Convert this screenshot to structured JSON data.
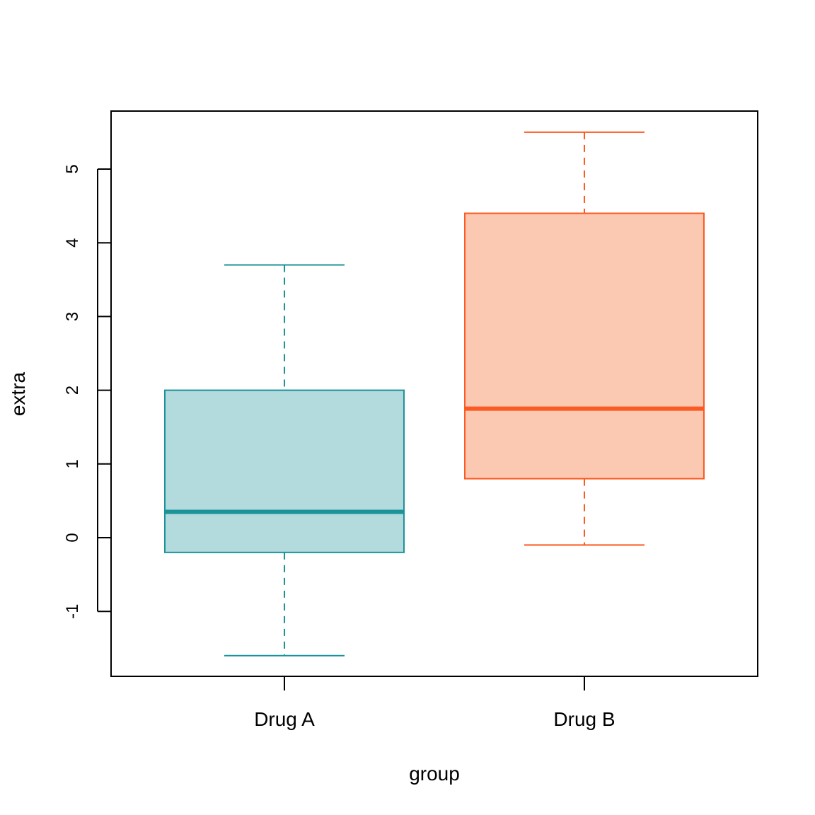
{
  "chart_data": {
    "type": "boxplot",
    "title": "",
    "xlabel": "group",
    "ylabel": "extra",
    "ylim": [
      -1.9,
      5.8
    ],
    "yticks": [
      -1,
      0,
      1,
      2,
      3,
      4,
      5
    ],
    "grid": false,
    "categories": [
      "Drug A",
      "Drug B"
    ],
    "boxes": [
      {
        "category": "Drug A",
        "whisker_low": -1.6,
        "q1": -0.2,
        "median": 0.35,
        "q3": 2.0,
        "whisker_high": 3.7,
        "line_color": "#1a9399",
        "fill_color": "#b3dadd"
      },
      {
        "category": "Drug B",
        "whisker_low": -0.1,
        "q1": 0.8,
        "median": 1.75,
        "q3": 4.4,
        "whisker_high": 5.5,
        "line_color": "#fb5a22",
        "fill_color": "#fbc8b2"
      }
    ]
  }
}
